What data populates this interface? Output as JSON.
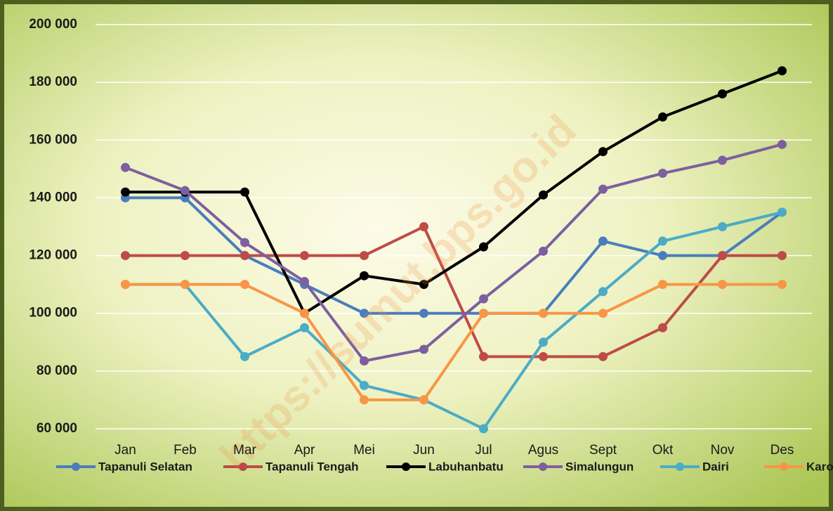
{
  "chart_data": {
    "type": "line",
    "watermark": "https://sumut.bps.go.id",
    "categories": [
      "Jan",
      "Feb",
      "Mar",
      "Apr",
      "Mei",
      "Jun",
      "Jul",
      "Agus",
      "Sept",
      "Okt",
      "Nov",
      "Des"
    ],
    "series": [
      {
        "name": "Tapanuli Selatan",
        "color": "#4a7ebb",
        "values": [
          140000,
          140000,
          120000,
          110000,
          100000,
          100000,
          100000,
          100000,
          125000,
          120000,
          120000,
          135000
        ]
      },
      {
        "name": "Tapanuli Tengah",
        "color": "#be4b48",
        "values": [
          120000,
          120000,
          120000,
          120000,
          120000,
          130000,
          85000,
          85000,
          85000,
          95000,
          120000,
          120000
        ]
      },
      {
        "name": "Labuhanbatu",
        "color": "#000000",
        "values": [
          142000,
          142000,
          142000,
          100000,
          113000,
          110000,
          123000,
          141000,
          156000,
          168000,
          176000,
          184000
        ]
      },
      {
        "name": "Simalungun",
        "color": "#7d5fa0",
        "values": [
          150500,
          142500,
          124500,
          111000,
          83500,
          87500,
          105000,
          121500,
          143000,
          148500,
          153000,
          158500
        ]
      },
      {
        "name": "Dairi",
        "color": "#4bacc6",
        "values": [
          110000,
          110000,
          85000,
          95000,
          75000,
          70000,
          60000,
          90000,
          107500,
          125000,
          130000,
          135000
        ]
      },
      {
        "name": "Karo",
        "color": "#f79646",
        "values": [
          110000,
          110000,
          110000,
          100000,
          70000,
          70000,
          100000,
          100000,
          100000,
          110000,
          110000,
          110000
        ]
      }
    ],
    "ylim": [
      60000,
      200000
    ],
    "yticks": [
      {
        "value": 60000,
        "label": "60 000"
      },
      {
        "value": 80000,
        "label": "80 000"
      },
      {
        "value": 100000,
        "label": "100 000"
      },
      {
        "value": 120000,
        "label": "120 000"
      },
      {
        "value": 140000,
        "label": "140 000"
      },
      {
        "value": 160000,
        "label": "160 000"
      },
      {
        "value": 180000,
        "label": "180 000"
      },
      {
        "value": 200000,
        "label": "200 000"
      }
    ],
    "grid": true,
    "legend": "bottom"
  }
}
